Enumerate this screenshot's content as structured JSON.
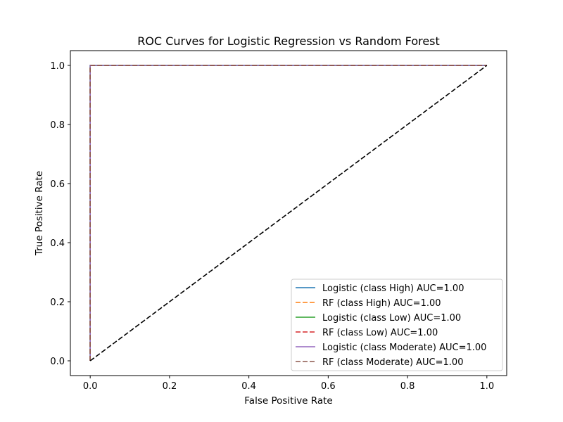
{
  "chart_data": {
    "type": "line",
    "title": "ROC Curves for Logistic Regression vs Random Forest",
    "xlabel": "False Positive Rate",
    "ylabel": "True Positive Rate",
    "xlim": [
      -0.05,
      1.05
    ],
    "ylim": [
      -0.05,
      1.05
    ],
    "xticks": [
      0.0,
      0.2,
      0.4,
      0.6,
      0.8,
      1.0
    ],
    "yticks": [
      0.0,
      0.2,
      0.4,
      0.6,
      0.8,
      1.0
    ],
    "xtick_labels": [
      "0.0",
      "0.2",
      "0.4",
      "0.6",
      "0.8",
      "1.0"
    ],
    "ytick_labels": [
      "0.0",
      "0.2",
      "0.4",
      "0.6",
      "0.8",
      "1.0"
    ],
    "grid": false,
    "legend_position": "lower-right",
    "series": [
      {
        "name": "Logistic (class High) AUC=1.00",
        "color": "#1f77b4",
        "dash": "solid",
        "x": [
          0,
          0,
          1
        ],
        "y": [
          0,
          1,
          1
        ]
      },
      {
        "name": "RF (class High) AUC=1.00",
        "color": "#ff7f0e",
        "dash": "dashed",
        "x": [
          0,
          0,
          1
        ],
        "y": [
          0,
          1,
          1
        ]
      },
      {
        "name": "Logistic (class Low) AUC=1.00",
        "color": "#2ca02c",
        "dash": "solid",
        "x": [
          0,
          0,
          1
        ],
        "y": [
          0,
          1,
          1
        ]
      },
      {
        "name": "RF (class Low) AUC=1.00",
        "color": "#d62728",
        "dash": "dashed",
        "x": [
          0,
          0,
          1
        ],
        "y": [
          0,
          1,
          1
        ]
      },
      {
        "name": "Logistic (class Moderate) AUC=1.00",
        "color": "#9467bd",
        "dash": "solid",
        "x": [
          0,
          0,
          1
        ],
        "y": [
          0,
          1,
          1
        ]
      },
      {
        "name": "RF (class Moderate) AUC=1.00",
        "color": "#8c564b",
        "dash": "dashed",
        "x": [
          0,
          0,
          1
        ],
        "y": [
          0,
          1,
          1
        ]
      }
    ],
    "reference_line": {
      "color": "#000000",
      "dash": "dashed",
      "x": [
        0,
        1
      ],
      "y": [
        0,
        1
      ]
    }
  }
}
